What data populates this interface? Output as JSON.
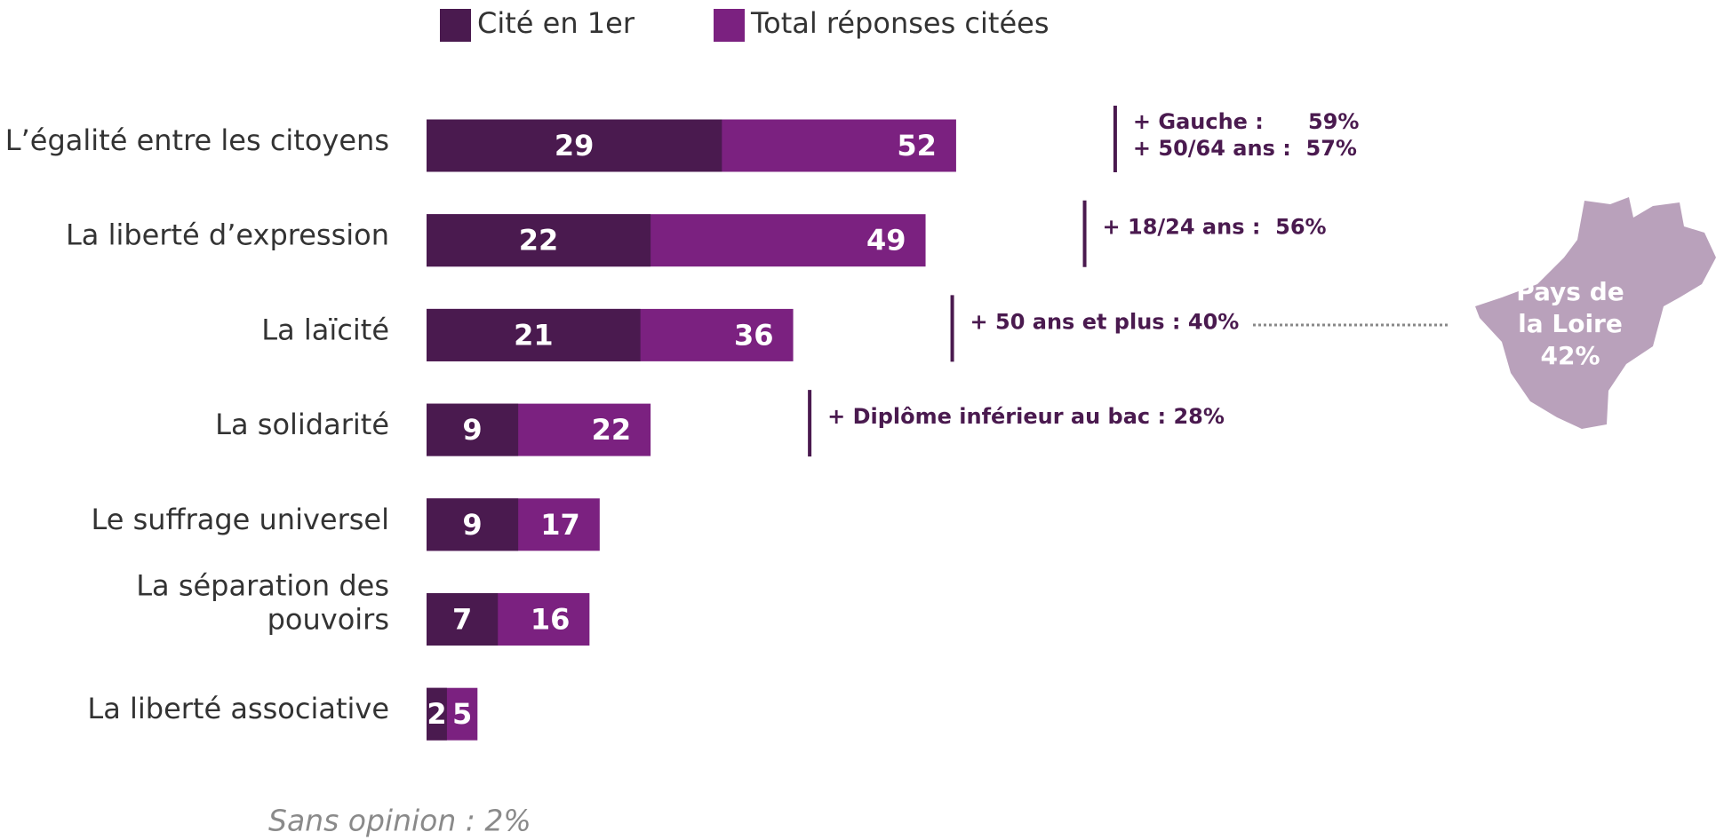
{
  "chart_data": {
    "type": "bar",
    "orientation": "horizontal",
    "categories": [
      "L’égalité entre les citoyens",
      "La liberté d’expression",
      "La laïcité",
      "La solidarité",
      "Le suffrage universel",
      [
        "La séparation des",
        "pouvoirs"
      ],
      "La liberté associative"
    ],
    "series": [
      {
        "name": "Total réponses citées",
        "color": "#7b2180",
        "values": [
          52,
          49,
          36,
          22,
          17,
          16,
          5
        ]
      },
      {
        "name": "Cité en 1er",
        "color": "#4a1a4f",
        "values": [
          29,
          22,
          21,
          9,
          9,
          7,
          2
        ]
      }
    ],
    "xlim": [
      0,
      100
    ],
    "annotations": [
      {
        "category": 0,
        "lines": [
          "+ Gauche :      59%",
          "+ 50/64 ans :  57%"
        ]
      },
      {
        "category": 1,
        "lines": [
          "+ 18/24 ans :  56%"
        ]
      },
      {
        "category": 2,
        "lines": [
          "+ 50 ans et plus : 40%"
        ]
      },
      {
        "category": 3,
        "lines": [
          "+ Diplôme inférieur au bac : 28%"
        ]
      }
    ],
    "map_label": [
      "Pays de",
      "la Loire",
      "42%"
    ],
    "footnote": "Sans opinion : 2%"
  }
}
